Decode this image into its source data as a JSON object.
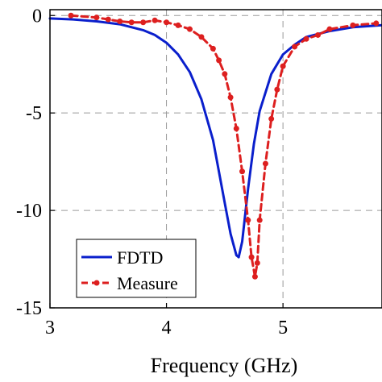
{
  "chart_data": {
    "type": "line",
    "title": "",
    "xlabel": "Frequency (GHz)",
    "ylabel": "",
    "xlim": [
      3,
      5.85
    ],
    "ylim": [
      -15,
      0.3
    ],
    "xticks": [
      "3",
      "4",
      "5"
    ],
    "yticks": [
      "0",
      "-5",
      "-10",
      "-15"
    ],
    "grid": true,
    "legend_position": "bottom-left",
    "series": [
      {
        "name": "FDTD",
        "color": "#0a1fcc",
        "style": "solid",
        "x": [
          3.0,
          3.2,
          3.4,
          3.6,
          3.8,
          3.9,
          4.0,
          4.1,
          4.2,
          4.3,
          4.4,
          4.5,
          4.55,
          4.6,
          4.62,
          4.65,
          4.7,
          4.75,
          4.8,
          4.9,
          5.0,
          5.1,
          5.2,
          5.4,
          5.6,
          5.85
        ],
        "y": [
          -0.15,
          -0.2,
          -0.3,
          -0.45,
          -0.75,
          -1.0,
          -1.4,
          -2.0,
          -2.9,
          -4.3,
          -6.4,
          -9.6,
          -11.2,
          -12.3,
          -12.4,
          -11.6,
          -8.9,
          -6.6,
          -4.9,
          -3.0,
          -2.0,
          -1.5,
          -1.1,
          -0.8,
          -0.6,
          -0.5
        ]
      },
      {
        "name": "Measure",
        "color": "#dd1f1f",
        "style": "dashed-dot",
        "x": [
          3.18,
          3.4,
          3.5,
          3.6,
          3.7,
          3.8,
          3.9,
          4.0,
          4.1,
          4.2,
          4.3,
          4.4,
          4.45,
          4.5,
          4.55,
          4.6,
          4.65,
          4.7,
          4.73,
          4.76,
          4.78,
          4.8,
          4.85,
          4.9,
          4.95,
          5.0,
          5.1,
          5.2,
          5.3,
          5.4,
          5.6,
          5.8
        ],
        "y": [
          0.0,
          -0.1,
          -0.2,
          -0.3,
          -0.35,
          -0.35,
          -0.25,
          -0.35,
          -0.5,
          -0.7,
          -1.1,
          -1.7,
          -2.3,
          -3.0,
          -4.2,
          -5.8,
          -8.0,
          -10.5,
          -12.4,
          -13.4,
          -12.7,
          -10.5,
          -7.6,
          -5.3,
          -3.8,
          -2.6,
          -1.6,
          -1.2,
          -1.0,
          -0.7,
          -0.5,
          -0.4
        ]
      }
    ]
  }
}
